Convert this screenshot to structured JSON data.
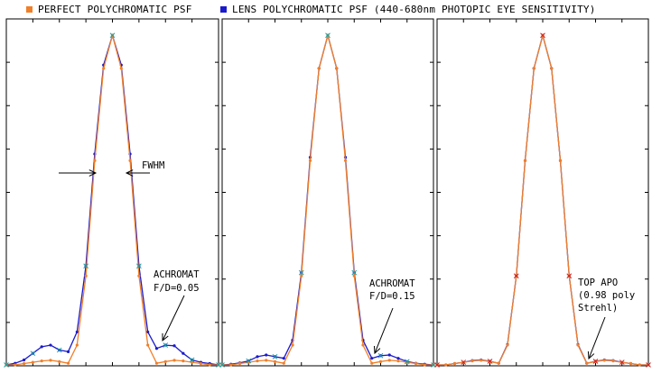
{
  "legend": {
    "perfect_label": "PERFECT POLYCHROMATIC PSF",
    "lens_label": "LENS POLYCHROMATIC PSF (440-680nm PHOTOPIC EYE SENSITIVITY)"
  },
  "colors": {
    "perfect": "#f07f2a",
    "lens": "#1a1acc",
    "marker_cyan": "#1aa0a0",
    "marker_red": "#cc2020"
  },
  "chart_data": [
    {
      "type": "line",
      "panel": 1,
      "x": [
        -3.0,
        -2.75,
        -2.5,
        -2.25,
        -2.0,
        -1.75,
        -1.5,
        -1.25,
        -1.0,
        -0.75,
        -0.5,
        -0.25,
        0.0,
        0.25,
        0.5,
        0.75,
        1.0,
        1.25,
        1.5,
        1.75,
        2.0,
        2.25,
        2.5,
        2.75,
        3.0
      ],
      "series": [
        {
          "name": "PERFECT POLYCHROMATIC PSF",
          "values": [
            0.0,
            0.0,
            0.004,
            0.008,
            0.012,
            0.014,
            0.01,
            0.005,
            0.06,
            0.27,
            0.62,
            0.9,
            1.0,
            0.9,
            0.62,
            0.27,
            0.06,
            0.005,
            0.01,
            0.014,
            0.012,
            0.008,
            0.004,
            0.0,
            0.0
          ]
        },
        {
          "name": "LENS POLYCHROMATIC PSF (440-680nm PHOTOPIC EYE SENSITIVITY)",
          "values": [
            0.0,
            0.005,
            0.015,
            0.035,
            0.055,
            0.06,
            0.045,
            0.04,
            0.1,
            0.3,
            0.64,
            0.91,
            1.0,
            0.91,
            0.64,
            0.3,
            0.1,
            0.05,
            0.06,
            0.058,
            0.035,
            0.015,
            0.008,
            0.004,
            0.0
          ]
        }
      ],
      "annotations": {
        "fwhm": "FWHM",
        "label_line1": "ACHROMAT",
        "label_line2": "F/D=0.05"
      },
      "ylim": [
        0,
        1.0
      ]
    },
    {
      "type": "line",
      "panel": 2,
      "x": [
        -3.0,
        -2.75,
        -2.5,
        -2.25,
        -2.0,
        -1.75,
        -1.5,
        -1.25,
        -1.0,
        -0.75,
        -0.5,
        -0.25,
        0.0,
        0.25,
        0.5,
        0.75,
        1.0,
        1.25,
        1.5,
        1.75,
        2.0,
        2.25,
        2.5,
        2.75,
        3.0
      ],
      "series": [
        {
          "name": "PERFECT POLYCHROMATIC PSF",
          "values": [
            0.0,
            0.0,
            0.004,
            0.008,
            0.012,
            0.014,
            0.01,
            0.005,
            0.06,
            0.27,
            0.62,
            0.9,
            1.0,
            0.9,
            0.62,
            0.27,
            0.06,
            0.005,
            0.01,
            0.014,
            0.012,
            0.008,
            0.004,
            0.0,
            0.0
          ]
        },
        {
          "name": "LENS POLYCHROMATIC PSF (440-680nm PHOTOPIC EYE SENSITIVITY)",
          "values": [
            0.0,
            0.002,
            0.006,
            0.012,
            0.025,
            0.03,
            0.025,
            0.02,
            0.075,
            0.28,
            0.63,
            0.9,
            1.0,
            0.9,
            0.63,
            0.28,
            0.075,
            0.02,
            0.028,
            0.03,
            0.02,
            0.01,
            0.005,
            0.002,
            0.0
          ]
        }
      ],
      "annotations": {
        "label_line1": "ACHROMAT",
        "label_line2": "F/D=0.15"
      },
      "ylim": [
        0,
        1.0
      ]
    },
    {
      "type": "line",
      "panel": 3,
      "x": [
        -3.0,
        -2.75,
        -2.5,
        -2.25,
        -2.0,
        -1.75,
        -1.5,
        -1.25,
        -1.0,
        -0.75,
        -0.5,
        -0.25,
        0.0,
        0.25,
        0.5,
        0.75,
        1.0,
        1.25,
        1.5,
        1.75,
        2.0,
        2.25,
        2.5,
        2.75,
        3.0
      ],
      "series": [
        {
          "name": "PERFECT POLYCHROMATIC PSF",
          "values": [
            0.0,
            0.0,
            0.004,
            0.008,
            0.012,
            0.014,
            0.01,
            0.005,
            0.06,
            0.27,
            0.62,
            0.9,
            1.0,
            0.9,
            0.62,
            0.27,
            0.06,
            0.005,
            0.01,
            0.014,
            0.012,
            0.008,
            0.004,
            0.0,
            0.0
          ]
        },
        {
          "name": "LENS POLYCHROMATIC PSF (440-680nm PHOTOPIC EYE SENSITIVITY)",
          "values": [
            0.0,
            0.0,
            0.004,
            0.008,
            0.013,
            0.015,
            0.011,
            0.005,
            0.062,
            0.27,
            0.62,
            0.9,
            1.0,
            0.9,
            0.62,
            0.27,
            0.062,
            0.005,
            0.011,
            0.015,
            0.013,
            0.008,
            0.004,
            0.0,
            0.0
          ]
        }
      ],
      "annotations": {
        "label_line1": "TOP APO",
        "label_line2": "(0.98 poly",
        "label_line3": "Strehl)"
      },
      "ylim": [
        0,
        1.0
      ]
    }
  ]
}
